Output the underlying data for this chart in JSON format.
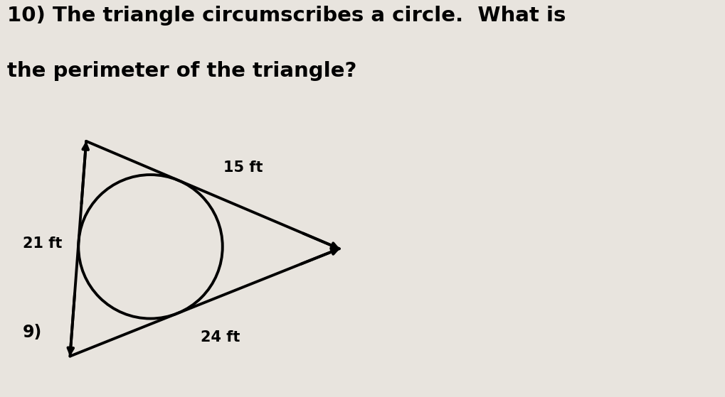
{
  "title_line1": "10) The triangle circumscribes a circle.  What is",
  "title_line2": "the perimeter of the triangle?",
  "title_fontsize": 21,
  "title_fontweight": "bold",
  "background_color": "#e8e4de",
  "triangle_color": "#000000",
  "circle_color": "#000000",
  "arrow_color": "#000000",
  "label_21": "21 ft",
  "label_15": "15 ft",
  "label_24": "24 ft",
  "label_fontsize": 15,
  "label_fontweight": "bold",
  "side_label": "9)",
  "side_label_fontsize": 17,
  "side_label_fontweight": "bold",
  "lw": 2.8,
  "A": [
    0.15,
    1.0
  ],
  "B": [
    0.0,
    -1.0
  ],
  "C": [
    2.5,
    0.0
  ]
}
